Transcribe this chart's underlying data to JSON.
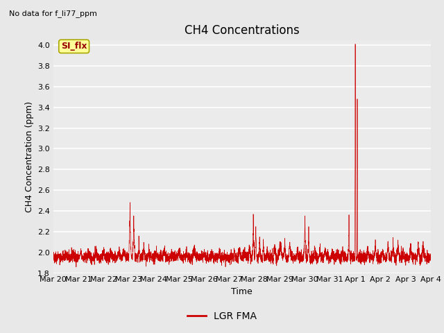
{
  "title": "CH4 Concentrations",
  "ylabel": "CH4 Concentration (ppm)",
  "xlabel": "Time",
  "top_left_text": "No data for f_li77_ppm",
  "legend_label": "LGR FMA",
  "line_color": "#cc0000",
  "legend_line_color": "#cc0000",
  "ylim": [
    1.8,
    4.05
  ],
  "yticks": [
    1.8,
    2.0,
    2.2,
    2.4,
    2.6,
    2.8,
    3.0,
    3.2,
    3.4,
    3.6,
    3.8,
    4.0
  ],
  "xtick_labels": [
    "Mar 20",
    "Mar 21",
    "Mar 22",
    "Mar 23",
    "Mar 24",
    "Mar 25",
    "Mar 26",
    "Mar 27",
    "Mar 28",
    "Mar 29",
    "Mar 30",
    "Mar 31",
    "Apr 1",
    "Apr 2",
    "Apr 3",
    "Apr 4"
  ],
  "background_color": "#e8e8e8",
  "plot_bg_color": "#ebebeb",
  "grid_color": "#ffffff",
  "annotation_box_color": "#ffff99",
  "annotation_text": "SI_flx",
  "annotation_text_color": "#990000",
  "title_fontsize": 12,
  "label_fontsize": 9,
  "tick_fontsize": 8
}
